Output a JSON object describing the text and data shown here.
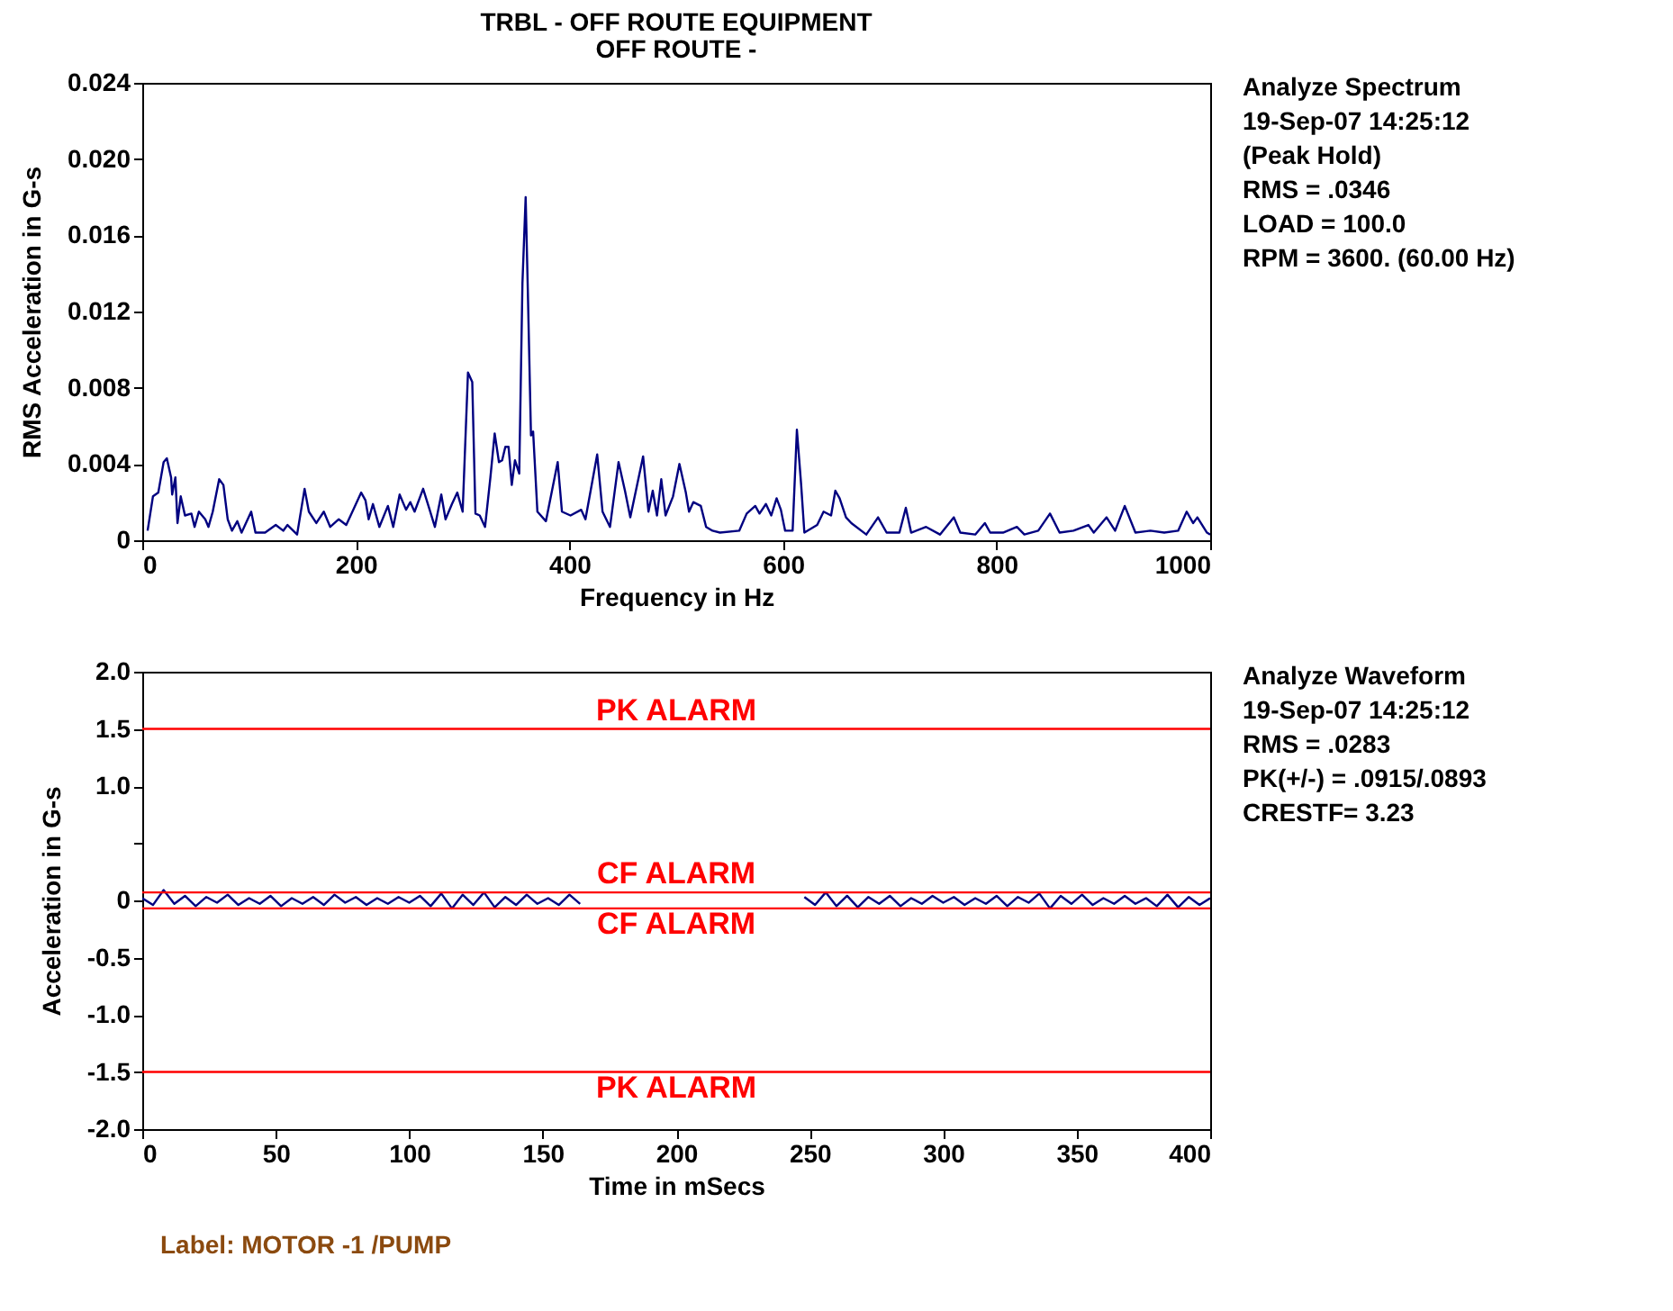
{
  "chart_data": [
    {
      "type": "line",
      "title": "TRBL - OFF ROUTE EQUIPMENT",
      "subtitle": "OFF ROUTE -",
      "xlabel": "Frequency in Hz",
      "ylabel": "RMS Acceleration in G-s",
      "annotations": [
        "Analyze Spectrum",
        "19-Sep-07  14:25:12",
        "(Peak Hold)",
        "RMS =  .0346",
        "LOAD = 100.0",
        "RPM = 3600. (60.00 Hz)"
      ],
      "x": [
        5,
        10,
        15,
        20,
        23,
        27,
        28,
        31,
        33,
        36,
        40,
        46,
        49,
        53,
        59,
        62,
        66,
        72,
        76,
        80,
        84,
        89,
        93,
        102,
        106,
        115,
        125,
        132,
        136,
        145,
        152,
        156,
        163,
        170,
        176,
        184,
        191,
        196,
        205,
        209,
        212,
        216,
        222,
        230,
        235,
        241,
        247,
        251,
        255,
        263,
        268,
        274,
        280,
        284,
        290,
        295,
        300,
        305,
        309,
        312,
        316,
        321,
        326,
        330,
        334,
        337,
        340,
        343,
        346,
        349,
        353,
        356,
        359,
        361,
        364,
        366,
        370,
        378,
        389,
        393,
        401,
        411,
        415,
        426,
        431,
        438,
        446,
        452,
        457,
        469,
        474,
        478,
        482,
        486,
        490,
        497,
        503,
        509,
        512,
        516,
        523,
        528,
        534,
        541,
        559,
        566,
        574,
        578,
        584,
        589,
        594,
        598,
        602,
        609,
        613,
        617,
        620,
        632,
        638,
        645,
        649,
        653,
        659,
        664,
        678,
        689,
        697,
        709,
        715,
        720,
        734,
        747,
        760,
        766,
        780,
        789,
        794,
        806,
        819,
        826,
        839,
        850,
        859,
        872,
        886,
        891,
        903,
        911,
        920,
        930,
        944,
        957,
        970,
        978,
        984,
        988,
        997,
        1000
      ],
      "series": [
        {
          "color": "#000080",
          "values": [
            0.0005,
            0.0023,
            0.0025,
            0.0041,
            0.0043,
            0.0033,
            0.0024,
            0.0033,
            0.0009,
            0.0023,
            0.0013,
            0.0014,
            0.0007,
            0.0015,
            0.0011,
            0.0007,
            0.0015,
            0.0032,
            0.0029,
            0.0011,
            0.0005,
            0.001,
            0.0004,
            0.0015,
            0.0004,
            0.0004,
            0.0008,
            0.0005,
            0.0008,
            0.0003,
            0.0027,
            0.0015,
            0.0009,
            0.0015,
            0.0007,
            0.0011,
            0.0008,
            0.0014,
            0.0025,
            0.0021,
            0.0011,
            0.0019,
            0.0007,
            0.0018,
            0.0007,
            0.0024,
            0.0016,
            0.002,
            0.0015,
            0.0027,
            0.0018,
            0.0007,
            0.0024,
            0.0011,
            0.0019,
            0.0025,
            0.0015,
            0.0088,
            0.0083,
            0.0014,
            0.0013,
            0.0007,
            0.0033,
            0.0056,
            0.0041,
            0.0042,
            0.0049,
            0.0049,
            0.0029,
            0.0042,
            0.0035,
            0.0135,
            0.018,
            0.0132,
            0.0055,
            0.0057,
            0.0015,
            0.001,
            0.0041,
            0.0015,
            0.0013,
            0.0016,
            0.0011,
            0.0045,
            0.0015,
            0.0007,
            0.0041,
            0.0026,
            0.0012,
            0.0044,
            0.0015,
            0.0026,
            0.0013,
            0.0032,
            0.0013,
            0.0023,
            0.004,
            0.0025,
            0.0015,
            0.002,
            0.0018,
            0.0007,
            0.0005,
            0.0004,
            0.0005,
            0.0014,
            0.0018,
            0.0014,
            0.0019,
            0.0013,
            0.0022,
            0.0016,
            0.0005,
            0.0005,
            0.0058,
            0.0029,
            0.0004,
            0.0008,
            0.0015,
            0.0013,
            0.0026,
            0.0022,
            0.0012,
            0.0009,
            0.0003,
            0.0012,
            0.0004,
            0.0004,
            0.0017,
            0.0004,
            0.0007,
            0.0003,
            0.0012,
            0.0004,
            0.0003,
            0.0009,
            0.0004,
            0.0004,
            0.0007,
            0.0003,
            0.0005,
            0.0014,
            0.0004,
            0.0005,
            0.0008,
            0.0004,
            0.0012,
            0.0005,
            0.0018,
            0.0004,
            0.0005,
            0.0004,
            0.0005,
            0.0015,
            0.0009,
            0.0012,
            0.0004,
            0.0003
          ]
        }
      ],
      "xlim": [
        0,
        1000
      ],
      "xticks": [
        0,
        200,
        400,
        600,
        800,
        1000
      ],
      "ylim": [
        0,
        0.024
      ],
      "yticks": [
        0,
        {
          "value": 0.004,
          "label": "0.004"
        },
        {
          "value": 0.008,
          "label": "0.008"
        },
        {
          "value": 0.012,
          "label": "0.012"
        },
        {
          "value": 0.016,
          "label": "0.016"
        },
        {
          "value": 0.02,
          "label": "0.020"
        },
        {
          "value": 0.024,
          "label": "0.024"
        }
      ],
      "grid": false,
      "marker": "none",
      "line_style": "solid"
    },
    {
      "type": "line",
      "xlabel": "Time in mSecs",
      "ylabel": "Acceleration in G-s",
      "annotations": [
        "Analyze Waveform",
        "19-Sep-07  14:25:12",
        "RMS =  .0283",
        "PK(+/-) = .0915/.0893",
        "CRESTF= 3.23",
        "Label:  MOTOR    -1   /PUMP"
      ],
      "x": [
        0,
        4,
        8,
        12,
        16,
        20,
        24,
        28,
        32,
        36,
        40,
        44,
        48,
        52,
        56,
        60,
        64,
        68,
        72,
        76,
        80,
        84,
        88,
        92,
        96,
        100,
        104,
        108,
        112,
        116,
        120,
        124,
        128,
        132,
        136,
        140,
        144,
        148,
        152,
        156,
        160,
        164,
        168,
        172,
        176,
        180,
        184,
        188,
        192,
        196,
        200,
        204,
        208,
        212,
        216,
        220,
        224,
        228,
        232,
        236,
        240,
        244,
        248,
        252,
        256,
        260,
        264,
        268,
        272,
        276,
        280,
        284,
        288,
        292,
        296,
        300,
        304,
        308,
        312,
        316,
        320,
        324,
        328,
        332,
        336,
        340,
        344,
        348,
        352,
        356,
        360,
        364,
        368,
        372,
        376,
        380,
        384,
        388,
        392,
        396,
        400
      ],
      "series": [
        {
          "color": "#000080",
          "values": [
            0.02,
            -0.04,
            0.09,
            -0.03,
            0.04,
            -0.05,
            0.03,
            -0.02,
            0.05,
            -0.04,
            0.02,
            -0.03,
            0.04,
            -0.05,
            0.02,
            -0.03,
            0.03,
            -0.04,
            0.05,
            -0.02,
            0.03,
            -0.04,
            0.02,
            -0.03,
            0.03,
            -0.02,
            0.04,
            -0.05,
            0.06,
            -0.07,
            0.05,
            -0.04,
            0.07,
            -0.06,
            0.03,
            -0.04,
            0.05,
            -0.03,
            0.02,
            -0.04,
            0.05,
            -0.03,
            null,
            null,
            null,
            null,
            null,
            null,
            null,
            null,
            null,
            null,
            null,
            null,
            null,
            null,
            null,
            null,
            null,
            null,
            null,
            null,
            0.03,
            -0.04,
            0.07,
            -0.05,
            0.04,
            -0.06,
            0.03,
            -0.03,
            0.04,
            -0.05,
            0.02,
            -0.03,
            0.04,
            -0.02,
            0.03,
            -0.04,
            0.02,
            -0.03,
            0.04,
            -0.05,
            0.03,
            -0.02,
            0.06,
            -0.07,
            0.04,
            -0.03,
            0.05,
            -0.04,
            0.02,
            -0.03,
            0.04,
            -0.03,
            0.02,
            -0.05,
            0.05,
            -0.06,
            0.03,
            -0.04,
            0.02
          ]
        }
      ],
      "xlim": [
        0,
        400
      ],
      "xticks": [
        0,
        50,
        100,
        150,
        200,
        250,
        300,
        350,
        400
      ],
      "ylim": [
        -2,
        2
      ],
      "yticks": [
        {
          "value": -2,
          "label": "-2.0"
        },
        -1.5,
        {
          "value": -1,
          "label": "-1.0"
        },
        -0.5,
        0,
        {
          "value": 0.5,
          "label": null
        },
        {
          "value": 1,
          "label": "1.0"
        },
        1.5,
        {
          "value": 2,
          "label": "2.0"
        }
      ],
      "ref_lines": [
        {
          "axis": "y",
          "value": 1.5,
          "label": "PK ALARM",
          "color": "#ff0000"
        },
        {
          "axis": "y",
          "value": 0.07,
          "label": "CF ALARM",
          "color": "#ff0000"
        },
        {
          "axis": "y",
          "value": -0.07,
          "label": "CF ALARM",
          "color": "#ff0000"
        },
        {
          "axis": "y",
          "value": -1.5,
          "label": "PK ALARM",
          "color": "#ff0000"
        }
      ],
      "grid": false,
      "marker": "none",
      "line_style": "solid"
    }
  ]
}
